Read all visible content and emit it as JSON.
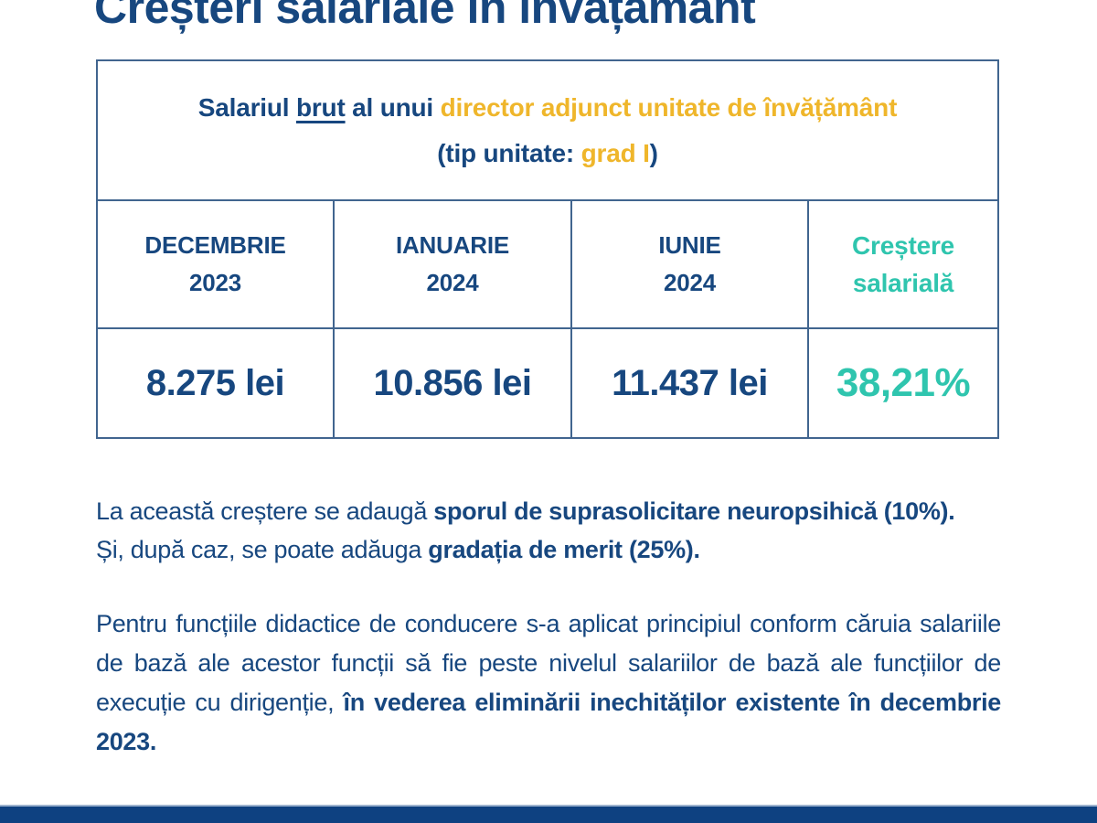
{
  "title": "Creșteri salariale în învățământ",
  "table": {
    "header": {
      "l1_navy1": "Salariul",
      "l1_underlined": "brut",
      "l1_navy2": "al unui",
      "l1_yellow": "director adjunct unitate de învățământ",
      "l2_navy1": "(tip unitate:",
      "l2_yellow": "grad I",
      "l2_navy2": ")"
    },
    "columns": [
      {
        "line1": "DECEMBRIE",
        "line2": "2023"
      },
      {
        "line1": "IANUARIE",
        "line2": "2024"
      },
      {
        "line1": "IUNIE",
        "line2": "2024"
      },
      {
        "line1": "Creștere",
        "line2": "salarială"
      }
    ],
    "values": [
      "8.275 lei",
      "10.856 lei",
      "11.437 lei",
      "38,21%"
    ]
  },
  "notes": {
    "p1": {
      "normal1": "La această creștere se adaugă",
      "bold1": "sporul de suprasolicitare neuropsihică (10%).",
      "normal2": "Și, după caz, se poate adăuga",
      "bold2": "gradația de merit (25%)."
    },
    "p2": {
      "normal1": "Pentru funcțiile didactice de conducere s-a aplicat principiul conform căruia salariile de bază ale acestor funcții să fie peste nivelul salariilor de bază ale funcțiilor de execuție cu dirigenție,",
      "bold1": "în vederea eliminării inechităților existente în decembrie 2023."
    }
  },
  "colors": {
    "navy_text": "#17477F",
    "accent_yellow": "#EFB62B",
    "accent_teal": "#2FC5AE",
    "table_border": "#41658F",
    "bottom_bar": "#0E4181"
  }
}
